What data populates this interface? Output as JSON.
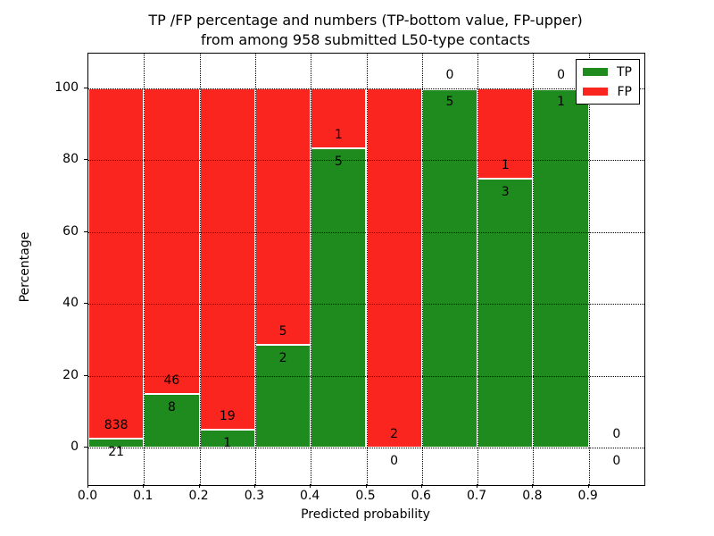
{
  "title": {
    "line1": "TP /FP percentage and numbers (TP-bottom value, FP-upper)",
    "line2": "from among 958 submitted L50-type contacts"
  },
  "axes": {
    "x_label": "Predicted probability",
    "y_label": "Percentage",
    "x_ticks": [
      "0.0",
      "0.1",
      "0.2",
      "0.3",
      "0.4",
      "0.5",
      "0.6",
      "0.7",
      "0.8",
      "0.9"
    ],
    "y_ticks": [
      "0",
      "20",
      "40",
      "60",
      "80",
      "100"
    ]
  },
  "legend": {
    "items": [
      {
        "label": "TP",
        "color": "#1f8b1f"
      },
      {
        "label": "FP",
        "color": "#fa251e"
      }
    ]
  },
  "colors": {
    "tp": "#1f8b1f",
    "fp": "#fa251e",
    "grid": "#000000",
    "background": "#ffffff"
  },
  "chart_data": {
    "type": "bar",
    "stacked": true,
    "title": "TP /FP percentage and numbers (TP-bottom value, FP-upper) from among 958 submitted L50-type contacts",
    "xlabel": "Predicted probability",
    "ylabel": "Percentage",
    "categories": [
      "0.0-0.1",
      "0.1-0.2",
      "0.2-0.3",
      "0.3-0.4",
      "0.4-0.5",
      "0.5-0.6",
      "0.6-0.7",
      "0.7-0.8",
      "0.8-0.9",
      "0.9-1.0"
    ],
    "bin_edges": [
      0.0,
      0.1,
      0.2,
      0.3,
      0.4,
      0.5,
      0.6,
      0.7,
      0.8,
      0.9,
      1.0
    ],
    "series": [
      {
        "name": "TP",
        "color": "#1f8b1f",
        "counts": [
          21,
          8,
          1,
          2,
          5,
          0,
          5,
          3,
          1,
          0
        ]
      },
      {
        "name": "FP",
        "color": "#fa251e",
        "counts": [
          838,
          46,
          19,
          5,
          1,
          2,
          0,
          1,
          0,
          0
        ]
      }
    ],
    "total_contacts": 958,
    "value_axis": "percentage of bin (TP bottom + FP top = 100% when bin non-empty)",
    "xlim": [
      0.0,
      1.0
    ],
    "ylim": [
      -10,
      110
    ],
    "grid": true,
    "grid_style": "dotted",
    "legend_position": "upper right",
    "label_convention": "TP count printed below the TP/FP boundary, FP count printed above it"
  }
}
